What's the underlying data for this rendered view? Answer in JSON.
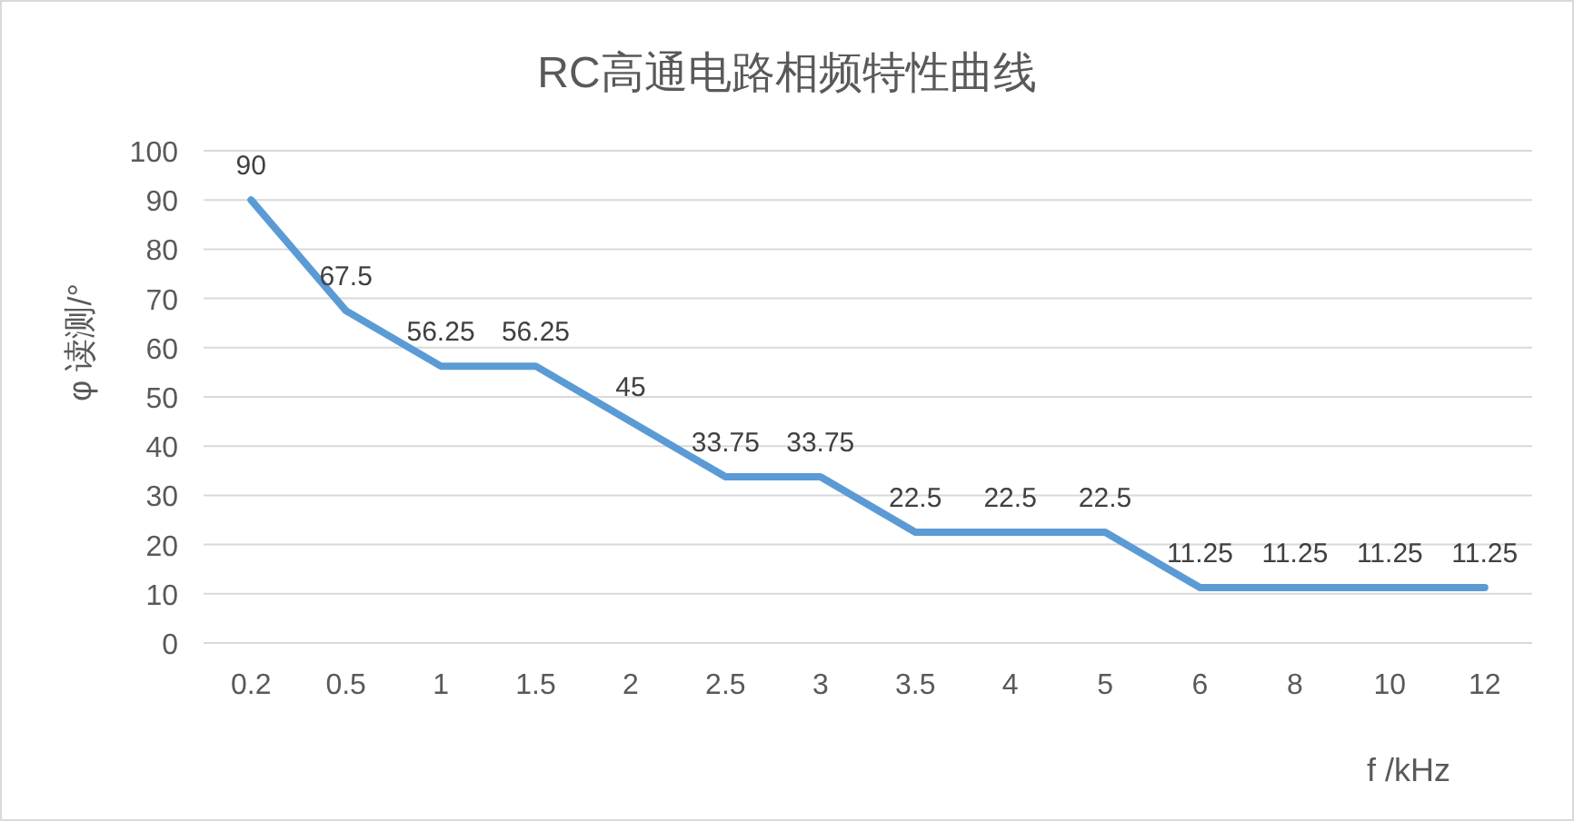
{
  "chart_data": {
    "type": "line",
    "title": "RC高通电路相频特性曲线",
    "xlabel": "f /kHz",
    "ylabel": "φ 读测/°",
    "categories": [
      "0.2",
      "0.5",
      "1",
      "1.5",
      "2",
      "2.5",
      "3",
      "3.5",
      "4",
      "5",
      "6",
      "8",
      "10",
      "12"
    ],
    "series": [
      {
        "color": "#5b9bd5",
        "values": [
          90,
          67.5,
          56.25,
          56.25,
          45,
          33.75,
          33.75,
          22.5,
          22.5,
          22.5,
          11.25,
          11.25,
          11.25,
          11.25
        ]
      }
    ],
    "ylim": [
      0,
      100
    ],
    "yticks": [
      0,
      10,
      20,
      30,
      40,
      50,
      60,
      70,
      80,
      90,
      100
    ],
    "grid": "y",
    "data_labels": true,
    "marker": "none",
    "line_style": "solid"
  }
}
